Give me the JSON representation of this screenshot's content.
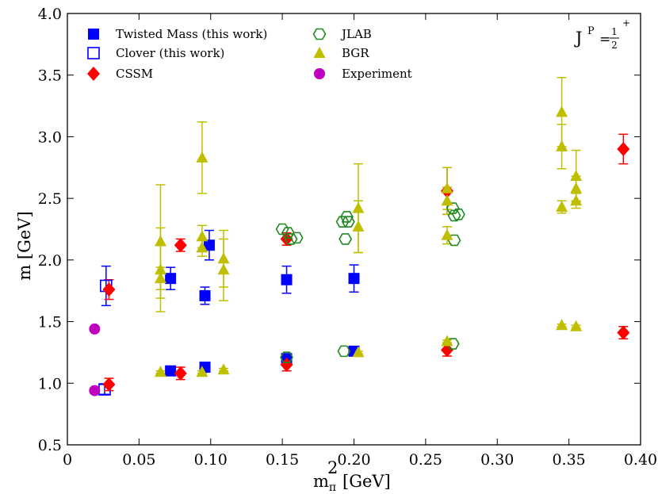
{
  "chart_data": {
    "type": "scatter",
    "title": "",
    "xlabel": "m",
    "xlabel_sup": "2",
    "xlabel_sub": "π",
    "xlabel_unit": "[GeV]",
    "ylabel": "m [GeV]",
    "xlim": [
      0,
      0.4
    ],
    "ylim": [
      0.5,
      4.0
    ],
    "x_ticks": [
      0,
      0.05,
      0.1,
      0.15,
      0.2,
      0.25,
      0.3,
      0.35,
      0.4
    ],
    "x_tick_labels": [
      "0",
      "0.05",
      "0.10",
      "0.15",
      "0.20",
      "0.25",
      "0.30",
      "0.35",
      "0.40"
    ],
    "y_ticks": [
      0.5,
      1.0,
      1.5,
      2.0,
      2.5,
      3.0,
      3.5,
      4.0
    ],
    "y_tick_labels": [
      "0.5",
      "1.0",
      "1.5",
      "2.0",
      "2.5",
      "3.0",
      "3.5",
      "4.0"
    ],
    "annotation": {
      "main": "J",
      "sup": "P",
      "equals": "=",
      "num": "1",
      "den": "2",
      "sign": "+"
    },
    "legend_position": "top-left",
    "series": [
      {
        "name": "Twisted Mass (this work)",
        "marker": "square-filled",
        "color": "#0000ff",
        "points": [
          {
            "x": 0.072,
            "y": 1.1,
            "err": 0.02
          },
          {
            "x": 0.072,
            "y": 1.85,
            "err": 0.09
          },
          {
            "x": 0.096,
            "y": 1.13,
            "err": 0.02
          },
          {
            "x": 0.096,
            "y": 1.71,
            "err": 0.07
          },
          {
            "x": 0.099,
            "y": 2.12,
            "err": 0.12
          },
          {
            "x": 0.153,
            "y": 1.2,
            "err": 0.02
          },
          {
            "x": 0.153,
            "y": 1.84,
            "err": 0.11
          },
          {
            "x": 0.2,
            "y": 1.26,
            "err": 0.02
          },
          {
            "x": 0.2,
            "y": 1.85,
            "err": 0.11
          }
        ]
      },
      {
        "name": "Clover (this work)",
        "marker": "square-open",
        "color": "#0000ff",
        "points": [
          {
            "x": 0.026,
            "y": 0.95,
            "err": 0.04
          },
          {
            "x": 0.027,
            "y": 1.79,
            "err": 0.16
          }
        ]
      },
      {
        "name": "CSSM",
        "marker": "diamond-filled",
        "color": "#ff0000",
        "points": [
          {
            "x": 0.029,
            "y": 0.99,
            "err": 0.05
          },
          {
            "x": 0.029,
            "y": 1.76,
            "err": 0.08
          },
          {
            "x": 0.079,
            "y": 1.08,
            "err": 0.05
          },
          {
            "x": 0.079,
            "y": 2.12,
            "err": 0.05
          },
          {
            "x": 0.153,
            "y": 1.15,
            "err": 0.05
          },
          {
            "x": 0.153,
            "y": 2.17,
            "err": 0.05
          },
          {
            "x": 0.265,
            "y": 1.27,
            "err": 0.05
          },
          {
            "x": 0.265,
            "y": 2.56,
            "err": 0.19
          },
          {
            "x": 0.388,
            "y": 1.41,
            "err": 0.05
          },
          {
            "x": 0.388,
            "y": 2.9,
            "err": 0.12
          }
        ]
      },
      {
        "name": "JLAB",
        "marker": "hexagon-open",
        "color": "#1e8a1e",
        "points": [
          {
            "x": 0.15,
            "y": 2.25
          },
          {
            "x": 0.153,
            "y": 1.21
          },
          {
            "x": 0.154,
            "y": 2.22
          },
          {
            "x": 0.156,
            "y": 2.17
          },
          {
            "x": 0.16,
            "y": 2.18
          },
          {
            "x": 0.192,
            "y": 2.31
          },
          {
            "x": 0.193,
            "y": 1.26
          },
          {
            "x": 0.194,
            "y": 2.17
          },
          {
            "x": 0.195,
            "y": 2.35
          },
          {
            "x": 0.196,
            "y": 2.31
          },
          {
            "x": 0.269,
            "y": 1.32
          },
          {
            "x": 0.269,
            "y": 2.42
          },
          {
            "x": 0.27,
            "y": 2.16
          },
          {
            "x": 0.27,
            "y": 2.36
          },
          {
            "x": 0.273,
            "y": 2.37
          }
        ]
      },
      {
        "name": "BGR",
        "marker": "triangle-filled",
        "color": "#bfbf00",
        "points": [
          {
            "x": 0.065,
            "y": 1.09,
            "err": 0.01
          },
          {
            "x": 0.065,
            "y": 1.85,
            "err": 0.09
          },
          {
            "x": 0.065,
            "y": 1.92,
            "err": 0.34
          },
          {
            "x": 0.065,
            "y": 2.15,
            "err": 0.46
          },
          {
            "x": 0.094,
            "y": 1.09,
            "err": 0.01
          },
          {
            "x": 0.094,
            "y": 2.1,
            "err": 0.07
          },
          {
            "x": 0.094,
            "y": 2.19,
            "err": 0.09
          },
          {
            "x": 0.094,
            "y": 2.83,
            "err": 0.29
          },
          {
            "x": 0.109,
            "y": 1.11,
            "err": 0.01
          },
          {
            "x": 0.109,
            "y": 1.92,
            "err": 0.25
          },
          {
            "x": 0.109,
            "y": 2.01,
            "err": 0.23
          },
          {
            "x": 0.203,
            "y": 1.25,
            "err": 0.01
          },
          {
            "x": 0.203,
            "y": 2.27,
            "err": 0.21
          },
          {
            "x": 0.203,
            "y": 2.42,
            "err": 0.36
          },
          {
            "x": 0.265,
            "y": 1.34,
            "err": 0.01
          },
          {
            "x": 0.265,
            "y": 2.2,
            "err": 0.07
          },
          {
            "x": 0.265,
            "y": 2.48,
            "err": 0.11
          },
          {
            "x": 0.265,
            "y": 2.58,
            "err": 0.17
          },
          {
            "x": 0.345,
            "y": 1.47,
            "err": 0.01
          },
          {
            "x": 0.345,
            "y": 2.43,
            "err": 0.05
          },
          {
            "x": 0.345,
            "y": 2.92,
            "err": 0.18
          },
          {
            "x": 0.345,
            "y": 3.2,
            "err": 0.28
          },
          {
            "x": 0.355,
            "y": 1.46,
            "err": 0.01
          },
          {
            "x": 0.355,
            "y": 2.48,
            "err": 0.06
          },
          {
            "x": 0.355,
            "y": 2.58,
            "err": 0.1
          },
          {
            "x": 0.355,
            "y": 2.68,
            "err": 0.21
          }
        ]
      },
      {
        "name": "Experiment",
        "marker": "circle-filled",
        "color": "#bf00bf",
        "points": [
          {
            "x": 0.019,
            "y": 0.94
          },
          {
            "x": 0.019,
            "y": 1.44
          }
        ]
      }
    ]
  }
}
